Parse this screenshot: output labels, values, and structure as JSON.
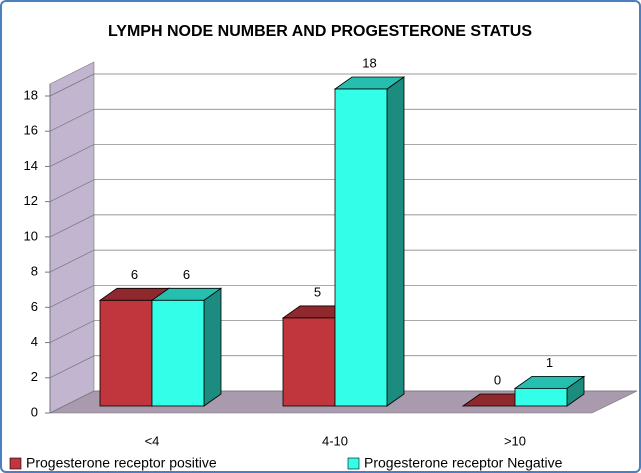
{
  "chart_data": {
    "type": "bar3d",
    "title": "LYMPH NODE NUMBER AND PROGESTERONE STATUS",
    "categories": [
      "<4",
      "4-10",
      ">10"
    ],
    "series": [
      {
        "name": "Progesterone receptor positive",
        "color": "#c0363c",
        "values": [
          6,
          5,
          0
        ]
      },
      {
        "name": "Progesterone receptor Negative",
        "color": "#33ffe9",
        "values": [
          6,
          18,
          1
        ]
      }
    ],
    "ylim": [
      0,
      18
    ],
    "yticks": [
      0,
      2,
      4,
      6,
      8,
      10,
      12,
      14,
      16,
      18
    ],
    "grid": true,
    "legend": "bottom"
  }
}
